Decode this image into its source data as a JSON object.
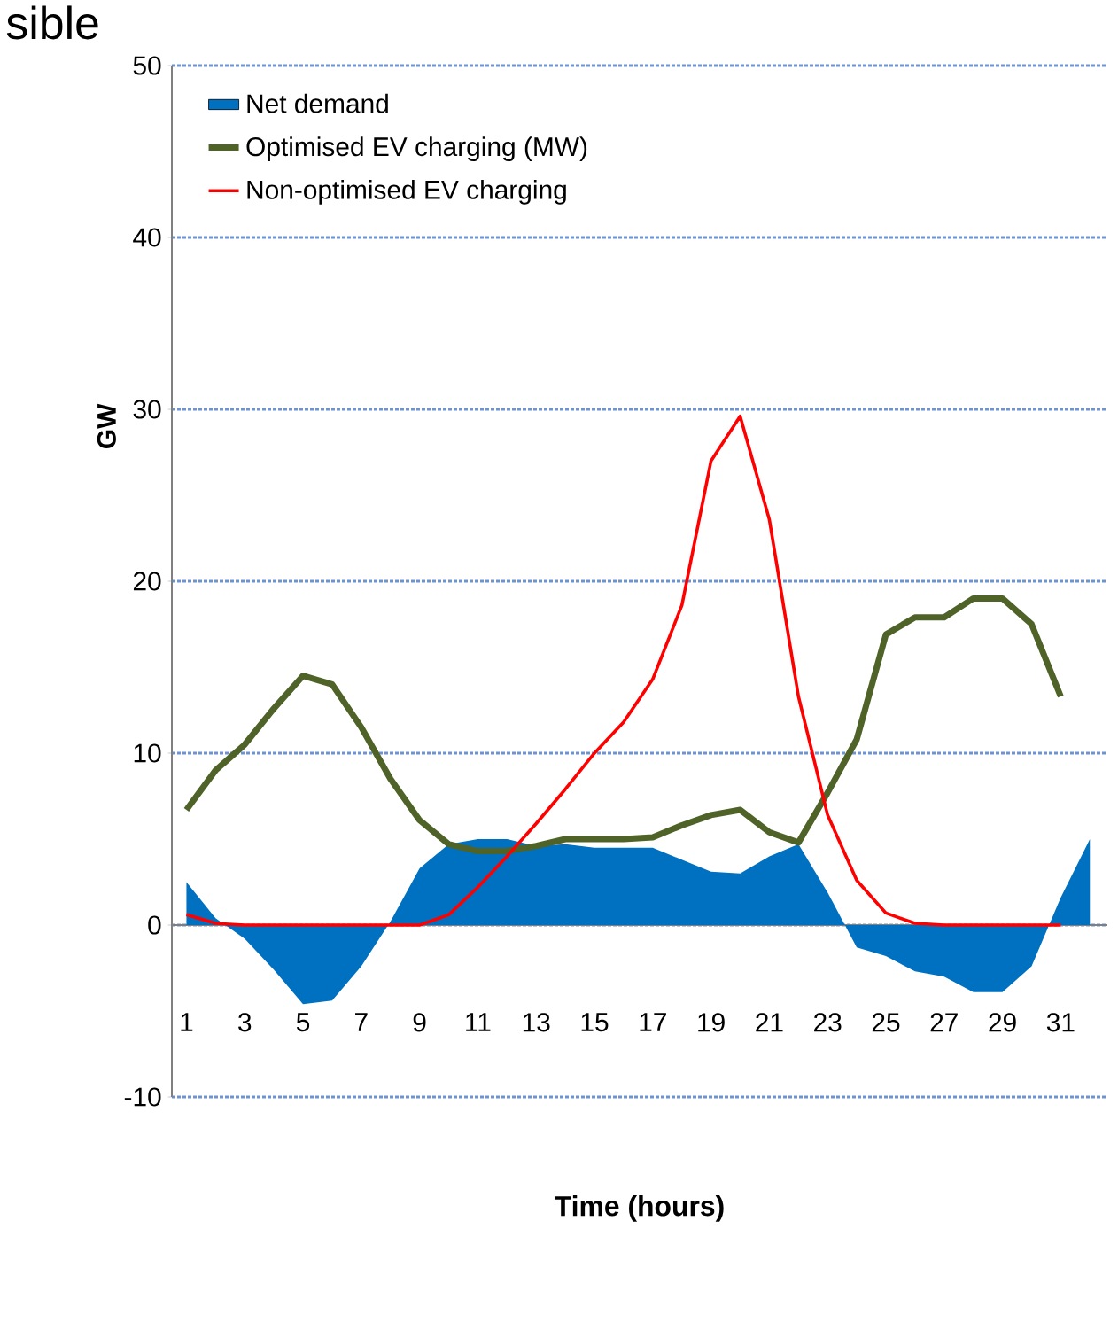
{
  "chart_data": {
    "type": "line",
    "x": [
      1,
      2,
      3,
      4,
      5,
      6,
      7,
      8,
      9,
      10,
      11,
      12,
      13,
      14,
      15,
      16,
      17,
      18,
      19,
      20,
      21,
      22,
      23,
      24,
      25,
      26,
      27,
      28,
      29,
      30,
      31
    ],
    "series": [
      {
        "name": "Net demand",
        "type": "area",
        "color": "#0070c0",
        "x": [
          1,
          2,
          3,
          4,
          5,
          6,
          7,
          8,
          9,
          10,
          11,
          12,
          13,
          14,
          15,
          16,
          17,
          18,
          19,
          20,
          21,
          22,
          23,
          24,
          25,
          26,
          27,
          28,
          29,
          30,
          31,
          32
        ],
        "values": [
          2.5,
          0.4,
          -0.8,
          -2.6,
          -4.6,
          -4.4,
          -2.4,
          0.2,
          3.3,
          4.7,
          5.0,
          5.0,
          4.6,
          4.7,
          4.5,
          4.5,
          4.5,
          3.8,
          3.1,
          3.0,
          4.0,
          4.7,
          1.9,
          -1.3,
          -1.8,
          -2.7,
          -3.0,
          -3.9,
          -3.9,
          -2.4,
          1.6,
          5.0
        ]
      },
      {
        "name": "Optimised EV charging (MW)",
        "color": "#4f6228",
        "values": [
          6.7,
          9.0,
          10.5,
          12.6,
          14.5,
          14.0,
          11.5,
          8.5,
          6.1,
          4.7,
          4.3,
          4.3,
          4.6,
          5.0,
          5.0,
          5.0,
          5.1,
          5.8,
          6.4,
          6.7,
          5.4,
          4.8,
          7.7,
          10.8,
          16.9,
          17.9,
          17.9,
          19.0,
          19.0,
          17.5,
          13.3
        ]
      },
      {
        "name": "Non-optimised EV charging",
        "color": "#ff0000",
        "values": [
          0.6,
          0.1,
          0,
          0,
          0,
          0,
          0,
          0,
          0,
          0.6,
          2.2,
          4.0,
          5.9,
          7.9,
          10.0,
          11.8,
          14.3,
          18.6,
          27.0,
          29.6,
          23.6,
          13.3,
          6.4,
          2.6,
          0.7,
          0.1,
          0,
          0,
          0,
          0,
          0
        ]
      }
    ],
    "xlabel": "Time (hours)",
    "ylabel": "GW",
    "xlim": [
      0.5,
      32.6
    ],
    "ylim": [
      -10,
      50
    ],
    "xticks": [
      1,
      3,
      5,
      7,
      9,
      11,
      13,
      15,
      17,
      19,
      21,
      23,
      25,
      27,
      29,
      31
    ],
    "yticks": [
      -10,
      0,
      10,
      20,
      30,
      40,
      50
    ],
    "grid": "y",
    "legend": "top left",
    "annotations": [
      "sible"
    ]
  }
}
